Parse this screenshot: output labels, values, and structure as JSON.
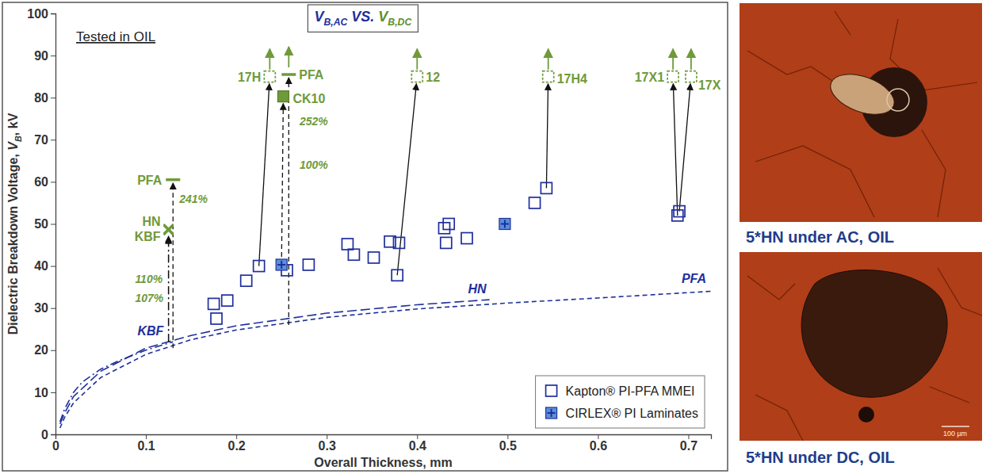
{
  "chart_data": {
    "type": "scatter",
    "title": [
      {
        "text": "V",
        "color": "#1f2f9c"
      },
      {
        "text": "B,AC",
        "sub": true,
        "color": "#1f2f9c"
      },
      {
        "text": " VS. ",
        "color": "#1f2f9c"
      },
      {
        "text": "V",
        "color": "#5e8f2a"
      },
      {
        "text": "B,DC",
        "sub": true,
        "color": "#5e8f2a"
      }
    ],
    "x_label": "Overall Thickness, mm",
    "y_label": [
      {
        "text": "Dielectric Breakdown Voltage, "
      },
      {
        "text": "V",
        "italic": true
      },
      {
        "text": "B",
        "sub": true,
        "italic": true
      },
      {
        "text": ", kV"
      }
    ],
    "note": "Tested in OIL",
    "xlim": [
      0,
      0.725
    ],
    "xticks": [
      0,
      0.1,
      0.2,
      0.3,
      0.4,
      0.5,
      0.6,
      0.7
    ],
    "ylim": [
      0,
      100
    ],
    "yticks": [
      0,
      10,
      20,
      30,
      40,
      50,
      60,
      70,
      80,
      90,
      100
    ],
    "legend": "lower right",
    "series": [
      {
        "name": "Kapton® PI-PFA MMEI",
        "color": "#1f2f9c",
        "marker": "square-open",
        "x": [
          0.175,
          0.178,
          0.19,
          0.211,
          0.225,
          0.256,
          0.28,
          0.323,
          0.33,
          0.352,
          0.37,
          0.378,
          0.38,
          0.43,
          0.432,
          0.435,
          0.455,
          0.53,
          0.543,
          0.688,
          0.69
        ],
        "values": [
          31,
          27.5,
          31.8,
          36.5,
          40,
          39,
          40.3,
          45.2,
          42.7,
          42,
          45.8,
          37.8,
          45.5,
          49,
          45.5,
          50,
          46.6,
          55,
          58.5,
          52,
          53
        ]
      },
      {
        "name": "CIRLEX® PI Laminates",
        "color": "#5b8fd9",
        "marker": "square-plus",
        "x": [
          0.25,
          0.497
        ],
        "values": [
          40.3,
          50
        ]
      }
    ],
    "curves": [
      {
        "name": "KBF",
        "color": "#1f2f9c",
        "line_style": "dashdot",
        "x": [
          0.005,
          0.01,
          0.02,
          0.03,
          0.05,
          0.07,
          0.1,
          0.13
        ],
        "values": [
          3,
          6,
          10,
          12.5,
          15.5,
          17.5,
          20,
          22
        ]
      },
      {
        "name": "HN",
        "color": "#1f2f9c",
        "line_style": "longdash",
        "x": [
          0.005,
          0.01,
          0.02,
          0.05,
          0.1,
          0.15,
          0.2,
          0.3,
          0.4,
          0.48
        ],
        "values": [
          2.5,
          5,
          9,
          15,
          20.5,
          23.5,
          25.8,
          28.8,
          30.8,
          32
        ]
      },
      {
        "name": "PFA",
        "color": "#1f2f9c",
        "line_style": "dashed",
        "x": [
          0.005,
          0.01,
          0.02,
          0.05,
          0.1,
          0.15,
          0.2,
          0.3,
          0.4,
          0.5,
          0.6,
          0.725
        ],
        "values": [
          1.5,
          4,
          7.5,
          13.5,
          19,
          22.5,
          24.8,
          27.8,
          29.8,
          31.2,
          32.4,
          34
        ]
      }
    ],
    "dc_points": {
      "color": "#6f9a3a",
      "points": [
        {
          "label": "PFA",
          "x": 0.13,
          "value": 60.5,
          "marker": "dash",
          "from_x": 0.13,
          "from_value": 20.5,
          "line_style": "dashed"
        },
        {
          "label": "HN",
          "x": 0.125,
          "value": 48.8,
          "marker": "x",
          "from_x": 0.125,
          "from_value": 22,
          "line_style": "dashdot"
        },
        {
          "label": "KBF",
          "x": 0.125,
          "value": 48.5,
          "marker": "x",
          "from_x": 0.125,
          "from_value": 22,
          "line_style": "dashdot"
        },
        {
          "label": "17H",
          "x": 0.237,
          "value": 85,
          "marker": "square-open-arrow",
          "from_x": 0.225,
          "from_value": 40,
          "line_style": "solid"
        },
        {
          "label": "PFA",
          "x": 0.258,
          "value": 85.5,
          "marker": "dash-arrow",
          "from_x": 0.258,
          "from_value": 26,
          "line_style": "dashed"
        },
        {
          "label": "CK10",
          "x": 0.252,
          "value": 80.3,
          "marker": "square",
          "from_x": 0.25,
          "from_value": 40.3,
          "line_style": "dashed"
        },
        {
          "label": "12",
          "x": 0.4,
          "value": 85,
          "marker": "square-open-arrow",
          "from_x": 0.378,
          "from_value": 37.8,
          "line_style": "solid"
        },
        {
          "label": "17H4",
          "x": 0.545,
          "value": 85,
          "marker": "square-open-arrow",
          "from_x": 0.543,
          "from_value": 58.5,
          "line_style": "solid"
        },
        {
          "label": "17X1",
          "x": 0.683,
          "value": 85,
          "marker": "square-open-arrow",
          "from_x": 0.688,
          "from_value": 52,
          "line_style": "solid"
        },
        {
          "label": "17X",
          "x": 0.703,
          "value": 85,
          "marker": "square-open-arrow",
          "from_x": 0.69,
          "from_value": 53,
          "line_style": "solid"
        }
      ]
    },
    "annotations": [
      {
        "text": "241%",
        "x": 0.137,
        "y": 55
      },
      {
        "text": "110%",
        "x": 0.088,
        "y": 36
      },
      {
        "text": "107%",
        "x": 0.088,
        "y": 31.5
      },
      {
        "text": "252%",
        "x": 0.27,
        "y": 73.5
      },
      {
        "text": "100%",
        "x": 0.27,
        "y": 63
      }
    ]
  },
  "photos": [
    {
      "caption": "5*HN under AC, OIL"
    },
    {
      "caption": "5*HN under DC, OIL",
      "scale_label": "100 µm"
    }
  ]
}
